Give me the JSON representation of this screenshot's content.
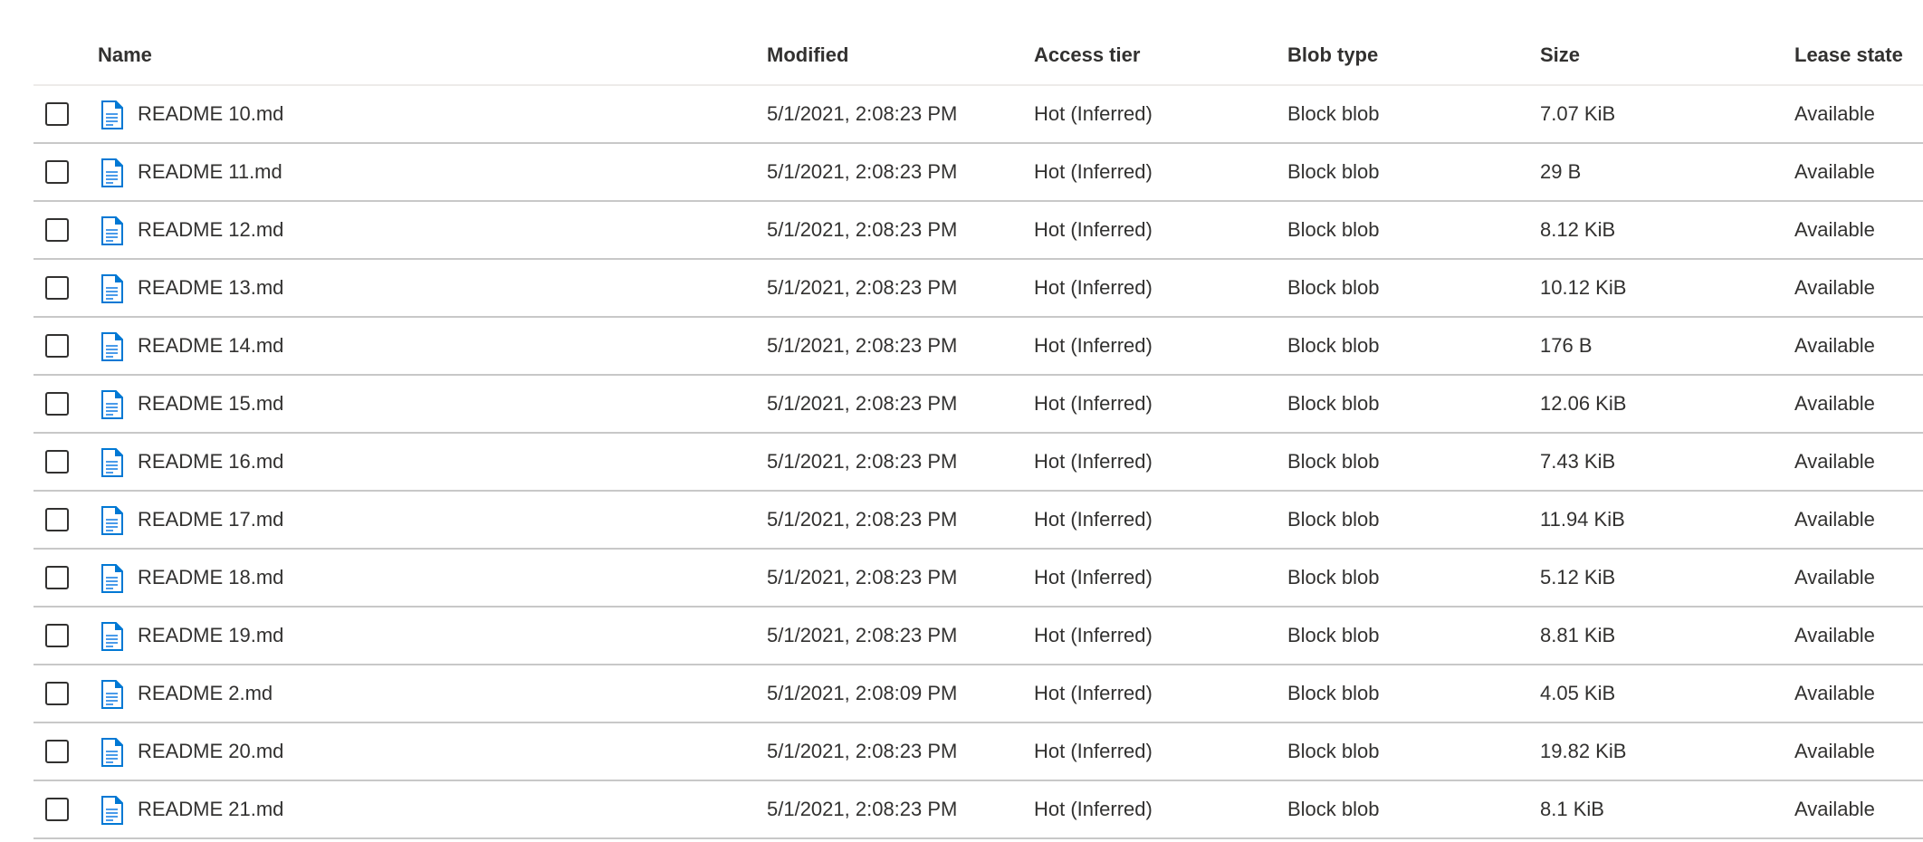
{
  "columns": {
    "name": "Name",
    "modified": "Modified",
    "access_tier": "Access tier",
    "blob_type": "Blob type",
    "size": "Size",
    "lease_state": "Lease state"
  },
  "accent_color": "#0078d4",
  "rows": [
    {
      "name": "README 10.md",
      "modified": "5/1/2021, 2:08:23 PM",
      "access_tier": "Hot (Inferred)",
      "blob_type": "Block blob",
      "size": "7.07 KiB",
      "lease_state": "Available"
    },
    {
      "name": "README 11.md",
      "modified": "5/1/2021, 2:08:23 PM",
      "access_tier": "Hot (Inferred)",
      "blob_type": "Block blob",
      "size": "29 B",
      "lease_state": "Available"
    },
    {
      "name": "README 12.md",
      "modified": "5/1/2021, 2:08:23 PM",
      "access_tier": "Hot (Inferred)",
      "blob_type": "Block blob",
      "size": "8.12 KiB",
      "lease_state": "Available"
    },
    {
      "name": "README 13.md",
      "modified": "5/1/2021, 2:08:23 PM",
      "access_tier": "Hot (Inferred)",
      "blob_type": "Block blob",
      "size": "10.12 KiB",
      "lease_state": "Available"
    },
    {
      "name": "README 14.md",
      "modified": "5/1/2021, 2:08:23 PM",
      "access_tier": "Hot (Inferred)",
      "blob_type": "Block blob",
      "size": "176 B",
      "lease_state": "Available"
    },
    {
      "name": "README 15.md",
      "modified": "5/1/2021, 2:08:23 PM",
      "access_tier": "Hot (Inferred)",
      "blob_type": "Block blob",
      "size": "12.06 KiB",
      "lease_state": "Available"
    },
    {
      "name": "README 16.md",
      "modified": "5/1/2021, 2:08:23 PM",
      "access_tier": "Hot (Inferred)",
      "blob_type": "Block blob",
      "size": "7.43 KiB",
      "lease_state": "Available"
    },
    {
      "name": "README 17.md",
      "modified": "5/1/2021, 2:08:23 PM",
      "access_tier": "Hot (Inferred)",
      "blob_type": "Block blob",
      "size": "11.94 KiB",
      "lease_state": "Available"
    },
    {
      "name": "README 18.md",
      "modified": "5/1/2021, 2:08:23 PM",
      "access_tier": "Hot (Inferred)",
      "blob_type": "Block blob",
      "size": "5.12 KiB",
      "lease_state": "Available"
    },
    {
      "name": "README 19.md",
      "modified": "5/1/2021, 2:08:23 PM",
      "access_tier": "Hot (Inferred)",
      "blob_type": "Block blob",
      "size": "8.81 KiB",
      "lease_state": "Available"
    },
    {
      "name": "README 2.md",
      "modified": "5/1/2021, 2:08:09 PM",
      "access_tier": "Hot (Inferred)",
      "blob_type": "Block blob",
      "size": "4.05 KiB",
      "lease_state": "Available"
    },
    {
      "name": "README 20.md",
      "modified": "5/1/2021, 2:08:23 PM",
      "access_tier": "Hot (Inferred)",
      "blob_type": "Block blob",
      "size": "19.82 KiB",
      "lease_state": "Available"
    },
    {
      "name": "README 21.md",
      "modified": "5/1/2021, 2:08:23 PM",
      "access_tier": "Hot (Inferred)",
      "blob_type": "Block blob",
      "size": "8.1 KiB",
      "lease_state": "Available"
    }
  ]
}
